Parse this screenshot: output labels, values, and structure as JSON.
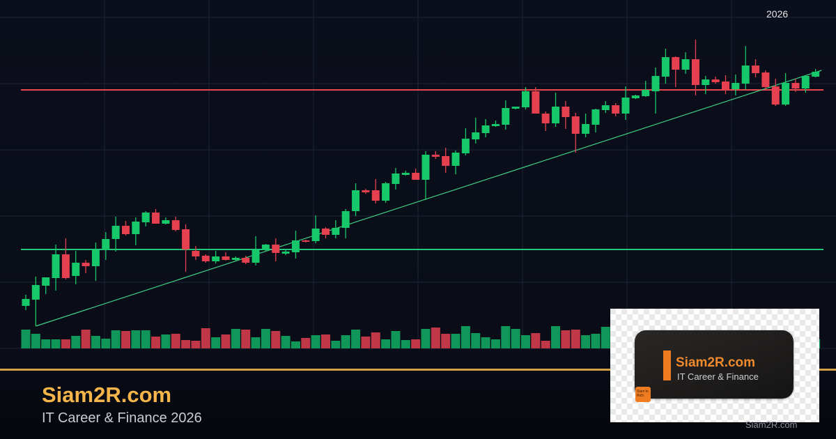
{
  "header": {
    "year_label": "2026"
  },
  "footer": {
    "brand": "Siam2R.com",
    "tagline": "IT Career & Finance 2026",
    "watermark": "Siam2R.com"
  },
  "logo": {
    "name": "Siam2R.com",
    "subtitle": "IT Career & Finance",
    "badge": "Siam to Rich"
  },
  "colors": {
    "background": "#0b0f1b",
    "up": "#16c86a",
    "down": "#e5404f",
    "volume_up": "#11965a",
    "volume_down": "#c03848",
    "support": "#22c77a",
    "resistance": "#e5484d",
    "trendline": "#3fcf85",
    "grid": "#1f2536",
    "accent": "#f5b54a"
  },
  "chart_data": {
    "type": "candlestick",
    "title": "",
    "xlabel": "",
    "ylabel": "",
    "x_tick_labels": [
      "2026"
    ],
    "grid": true,
    "legend": "none",
    "ylim": [
      0,
      475
    ],
    "open": [
      61,
      70,
      90,
      101,
      135,
      104,
      123,
      118,
      141,
      157,
      176,
      164,
      181,
      195,
      179,
      184,
      171,
      140,
      133,
      125,
      132,
      127,
      130,
      123,
      141,
      149,
      136,
      138,
      155,
      154,
      172,
      163,
      173,
      197,
      227,
      227,
      212,
      236,
      249,
      252,
      242,
      278,
      276,
      262,
      280,
      300,
      309,
      319,
      321,
      344,
      346,
      369,
      337,
      323,
      347,
      333,
      308,
      321,
      342,
      349,
      337,
      359,
      362,
      369,
      390,
      418,
      400,
      415,
      378,
      386,
      383,
      372,
      380,
      406,
      396,
      376,
      350,
      381,
      373,
      390
    ],
    "high": [
      77,
      103,
      102,
      149,
      158,
      140,
      127,
      152,
      167,
      189,
      183,
      188,
      197,
      200,
      188,
      189,
      178,
      147,
      135,
      140,
      138,
      132,
      133,
      161,
      150,
      158,
      142,
      169,
      156,
      191,
      174,
      184,
      200,
      237,
      229,
      243,
      239,
      259,
      255,
      258,
      283,
      283,
      288,
      284,
      316,
      331,
      329,
      327,
      356,
      347,
      375,
      375,
      340,
      367,
      355,
      338,
      337,
      344,
      355,
      352,
      376,
      364,
      384,
      403,
      430,
      419,
      425,
      443,
      391,
      390,
      392,
      393,
      434,
      415,
      399,
      387,
      395,
      387,
      392,
      401
    ],
    "low": [
      55,
      32,
      78,
      83,
      99,
      92,
      108,
      97,
      127,
      139,
      162,
      148,
      175,
      179,
      178,
      168,
      110,
      127,
      123,
      122,
      126,
      125,
      121,
      119,
      140,
      125,
      134,
      129,
      152,
      151,
      158,
      158,
      158,
      190,
      222,
      208,
      209,
      228,
      248,
      242,
      213,
      272,
      252,
      250,
      277,
      294,
      303,
      318,
      314,
      343,
      343,
      337,
      312,
      318,
      315,
      281,
      303,
      310,
      338,
      333,
      328,
      358,
      361,
      337,
      380,
      375,
      394,
      363,
      365,
      380,
      365,
      363,
      372,
      389,
      372,
      348,
      348,
      368,
      367,
      389
    ],
    "close": [
      71,
      91,
      102,
      135,
      101,
      123,
      118,
      141,
      157,
      176,
      164,
      182,
      195,
      179,
      184,
      170,
      142,
      132,
      125,
      132,
      127,
      130,
      123,
      141,
      149,
      137,
      139,
      155,
      153,
      172,
      163,
      173,
      197,
      227,
      224,
      212,
      237,
      251,
      252,
      242,
      278,
      275,
      262,
      281,
      301,
      310,
      320,
      322,
      345,
      347,
      369,
      337,
      323,
      347,
      332,
      308,
      322,
      343,
      349,
      337,
      360,
      363,
      371,
      391,
      418,
      400,
      415,
      378,
      386,
      382,
      371,
      381,
      406,
      395,
      375,
      350,
      381,
      373,
      391,
      397
    ],
    "volume": [
      27,
      21,
      13,
      13,
      13,
      18,
      27,
      18,
      14,
      26,
      25,
      26,
      26,
      17,
      20,
      21,
      12,
      11,
      29,
      16,
      20,
      28,
      27,
      16,
      28,
      25,
      18,
      10,
      15,
      19,
      20,
      11,
      19,
      27,
      17,
      23,
      13,
      25,
      12,
      13,
      28,
      30,
      21,
      21,
      32,
      22,
      16,
      13,
      32,
      28,
      19,
      22,
      11,
      32,
      26,
      27,
      19,
      21,
      31,
      null,
      null,
      null,
      null,
      null,
      null,
      null,
      null,
      null,
      null,
      null,
      null,
      null,
      null,
      null,
      null,
      null,
      null,
      null,
      null,
      13
    ],
    "horizontal_lines": [
      {
        "kind": "resistance",
        "price": 371
      },
      {
        "kind": "support",
        "price": 142
      }
    ],
    "trendline": {
      "from_index": 1,
      "from_price": 32,
      "to_index": 79.6,
      "to_price": 399
    }
  }
}
